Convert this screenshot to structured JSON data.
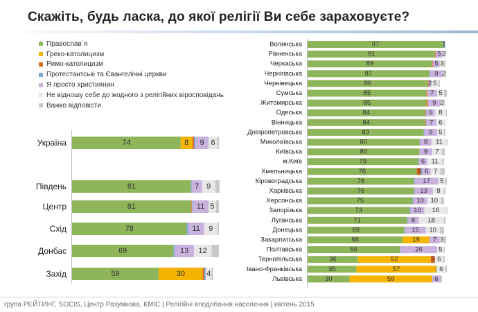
{
  "title": "Скажіть, будь ласка, до якої релігії Ви себе зараховуєте?",
  "footer": "група РЕЙТИНГ, SOCIS, Центр Разумкова, КМІС  |  Релігійні вподобання населення  |  квітень 2015",
  "legend": [
    {
      "name": "Православ`я",
      "color": "#8fb55a"
    },
    {
      "name": "Греко-католицизм",
      "color": "#f4b400"
    },
    {
      "name": "Римо-католицизм",
      "color": "#e3661f"
    },
    {
      "name": "Протестантські та Євангелічні церкви",
      "color": "#7fa5d2"
    },
    {
      "name": "Я просто християнин",
      "color": "#c9b3de"
    },
    {
      "name": "Не відношу себе до жодного з релігійних віросповідань",
      "color": "#e8e8e8"
    },
    {
      "name": "Важко відповісти",
      "color": "#c8c8c8"
    }
  ],
  "chart_data": [
    {
      "type": "bar",
      "orientation": "horizontal",
      "stacked": true,
      "title": "Регіони",
      "categories": [
        "Україна",
        "Південь",
        "Центр",
        "Схід",
        "Донбас",
        "Захід"
      ],
      "series": [
        {
          "name": "Православ`я",
          "values": [
            74,
            81,
            81,
            78,
            69,
            59
          ],
          "labels": [
            "74",
            "81",
            "81",
            "78",
            "69",
            "59"
          ]
        },
        {
          "name": "Греко-католицизм",
          "values": [
            8,
            0,
            0,
            0,
            0,
            30
          ],
          "labels": [
            "8",
            "",
            "",
            "",
            "",
            "30"
          ]
        },
        {
          "name": "Римо-католицизм",
          "values": [
            1,
            0,
            0.5,
            0,
            0,
            1
          ],
          "labels": [
            "",
            "",
            "",
            "",
            "",
            ""
          ]
        },
        {
          "name": "Протестантські та Євангелічні церкви",
          "values": [
            1,
            0.5,
            0.5,
            1,
            1,
            1
          ],
          "labels": [
            "",
            "",
            "",
            "",
            "",
            ""
          ]
        },
        {
          "name": "Я просто християнин",
          "values": [
            9,
            7,
            11,
            11,
            13,
            0
          ],
          "labels": [
            "9",
            "7",
            "11",
            "11",
            "13",
            ""
          ]
        },
        {
          "name": "Не відношу себе до жодного з релігійних віросповідань",
          "values": [
            6,
            9,
            5,
            9,
            12,
            4
          ],
          "labels": [
            "6",
            "9",
            "5",
            "9",
            "12",
            "4"
          ]
        },
        {
          "name": "Важко відповісти",
          "values": [
            1,
            3,
            2,
            1,
            5,
            1
          ],
          "labels": [
            "",
            "",
            "",
            "",
            "",
            ""
          ]
        }
      ]
    },
    {
      "type": "bar",
      "orientation": "horizontal",
      "stacked": true,
      "title": "Області",
      "categories": [
        "Волинська",
        "Рівненська",
        "Черкаська",
        "Чернігівська",
        "Чернівецька",
        "Сумська",
        "Житомирська",
        "Одеська",
        "Вінницька",
        "Дніпропетровська",
        "Миколаївська",
        "Київська",
        "м.Київ",
        "Хмельницька",
        "Кіровоградська",
        "Харківська",
        "Херсонська",
        "Запорізька",
        "Луганська",
        "Донецька",
        "Закарпатська",
        "Полтавська",
        "Тернопільська",
        "Івано-Франківська",
        "Львівська"
      ],
      "series": [
        {
          "name": "Православ`я",
          "values": [
            97,
            91,
            89,
            87,
            86,
            85,
            85,
            84,
            84,
            83,
            80,
            80,
            79,
            78,
            76,
            76,
            75,
            73,
            71,
            69,
            68,
            66,
            36,
            35,
            30
          ],
          "labels": [
            "97",
            "91",
            "89",
            "87",
            "86",
            "85",
            "85",
            "84",
            "84",
            "83",
            "80",
            "80",
            "79",
            "78",
            "76",
            "76",
            "75",
            "73",
            "71",
            "69",
            "68",
            "66",
            "36",
            "35",
            "30"
          ]
        },
        {
          "name": "Греко-католицизм",
          "values": [
            0,
            0,
            0,
            0,
            0,
            0,
            0,
            0,
            0,
            0,
            0,
            0,
            0,
            0,
            0,
            0,
            0,
            0,
            0,
            0,
            19,
            0,
            52,
            57,
            59
          ],
          "labels": [
            "",
            "",
            "",
            "",
            "",
            "",
            "",
            "",
            "",
            "",
            "",
            "",
            "",
            "",
            "",
            "",
            "",
            "",
            "",
            "",
            "19",
            "",
            "52",
            "57",
            "59"
          ]
        },
        {
          "name": "Римо-католицизм",
          "values": [
            0,
            0.5,
            0.5,
            0,
            0.5,
            0.5,
            1,
            0.5,
            0.5,
            0,
            0,
            0,
            0,
            3,
            0,
            0,
            0,
            0,
            0,
            0,
            0,
            0,
            3,
            0,
            0
          ],
          "labels": [
            "",
            "",
            "",
            "",
            "",
            "",
            "",
            "",
            "",
            "",
            "",
            "",
            "",
            "3",
            "",
            "",
            "",
            "",
            "",
            "",
            "",
            "",
            "3",
            "",
            ""
          ]
        },
        {
          "name": "Протестантські та Євангелічні церкви",
          "values": [
            1,
            0,
            0,
            0.5,
            0,
            0,
            0,
            0.5,
            0.5,
            0.5,
            0.5,
            0,
            0.5,
            1,
            0.5,
            0.5,
            0.5,
            0.5,
            0.5,
            0.5,
            0.5,
            0.5,
            0,
            0.5,
            0
          ],
          "labels": [
            "1",
            "",
            "",
            "",
            "",
            "",
            "",
            "",
            "",
            "",
            "",
            "",
            "",
            "",
            "",
            "",
            "",
            "",
            "",
            "",
            "",
            "",
            "",
            "",
            ""
          ]
        },
        {
          "name": "Я просто християнин",
          "values": [
            0,
            5,
            5,
            9,
            2,
            7,
            9,
            6,
            7,
            9,
            8,
            9,
            6,
            6,
            17,
            13,
            10,
            10,
            8,
            15,
            7,
            26,
            0,
            0,
            6
          ],
          "labels": [
            "",
            "5",
            "5",
            "9",
            "2",
            "7",
            "9",
            "6",
            "7",
            "9",
            "8",
            "9",
            "6",
            "6",
            "17",
            "13",
            "10",
            "10",
            "8",
            "15",
            "7",
            "26",
            "",
            "",
            "6"
          ]
        },
        {
          "name": "Не відношу себе до жодного з релігійних віросповідань",
          "values": [
            0,
            2,
            3,
            2,
            5,
            5,
            2,
            8,
            6,
            5,
            11,
            7,
            11,
            7,
            5,
            8,
            10,
            16,
            18,
            10,
            3,
            5,
            6,
            6,
            0
          ],
          "labels": [
            "",
            "2",
            "3",
            "2",
            "5",
            "5",
            "2",
            "8",
            "6",
            "5",
            "11",
            "7",
            "11",
            "7",
            "5",
            "8",
            "10",
            "16",
            "18",
            "10",
            "3",
            "5",
            "6",
            "6",
            ""
          ]
        },
        {
          "name": "Важко відповісти",
          "values": [
            0.5,
            0.5,
            1,
            0.5,
            1,
            2,
            1,
            0.5,
            0.5,
            1,
            0.5,
            2,
            1,
            3,
            1,
            1,
            2,
            0.5,
            1,
            3,
            1.5,
            0.5,
            1,
            1,
            1
          ],
          "labels": [
            "",
            "",
            "",
            "",
            "",
            "",
            "",
            "",
            "",
            "",
            "",
            "",
            "",
            "",
            "",
            "",
            "",
            "",
            "",
            "",
            "",
            "",
            "",
            "",
            ""
          ]
        }
      ]
    }
  ]
}
